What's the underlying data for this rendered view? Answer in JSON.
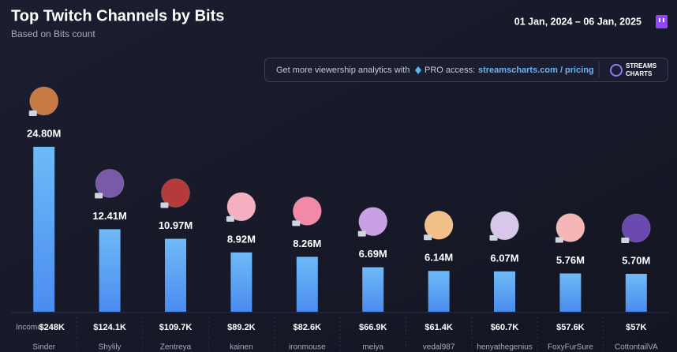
{
  "chart_data": {
    "type": "bar",
    "title": "Top Twitch Channels by Bits",
    "subtitle": "Based on Bits count",
    "date_range": "01 Jan, 2024 – 06 Jan, 2025",
    "banner": {
      "text": "Get more viewership analytics with",
      "pro": "PRO access:",
      "link": "streamscharts.com / pricing",
      "logo_top": "STREAMS",
      "logo_bottom": "CHARTS"
    },
    "categories": [
      "Sinder",
      "Shylily",
      "Zentreya",
      "kainen",
      "ironmouse",
      "meiya",
      "vedal987",
      "henyathegenius",
      "FoxyFurSure",
      "CottontailVA"
    ],
    "values": [
      24.8,
      12.41,
      10.97,
      8.92,
      8.26,
      6.69,
      6.14,
      6.07,
      5.76,
      5.7
    ],
    "value_labels": [
      "24.80M",
      "12.41M",
      "10.97M",
      "8.92M",
      "8.26M",
      "6.69M",
      "6.14M",
      "6.07M",
      "5.76M",
      "5.70M"
    ],
    "color": "#5aaaf6",
    "income_label": "Income:",
    "income": [
      "$248K",
      "$124.1K",
      "$109.7K",
      "$89.2K",
      "$82.6K",
      "$66.9K",
      "$61.4K",
      "$60.7K",
      "$57.6K",
      "$57K"
    ]
  }
}
